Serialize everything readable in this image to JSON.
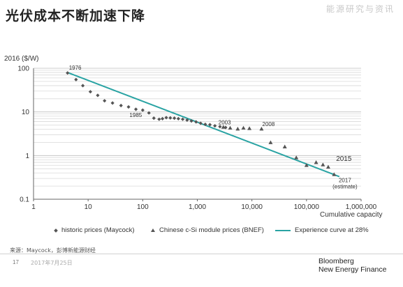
{
  "slide": {
    "title": "光伏成本不断加速下降",
    "watermark": "能源研究与资讯",
    "source": "来源：Maycock，彭博新能源财经",
    "page_number": "17",
    "date": "2017年7月25日",
    "brand_line1": "Bloomberg",
    "brand_line2": "New Energy Finance"
  },
  "chart_data": {
    "type": "scatter",
    "xlabel": "Cumulative capacity",
    "ylabel": "2016 ($/W)",
    "x_scale": "log",
    "y_scale": "log",
    "xlim": [
      1,
      1000000
    ],
    "ylim": [
      0.1,
      100
    ],
    "x_ticks": [
      1,
      10,
      100,
      1000,
      10000,
      100000,
      1000000
    ],
    "x_tick_labels": [
      "1",
      "10",
      "100",
      "1,000",
      "10,000",
      "100,000",
      "1,000,000"
    ],
    "y_ticks": [
      0.1,
      1,
      10,
      100
    ],
    "y_tick_labels": [
      "0.1",
      "1",
      "10",
      "100"
    ],
    "grid": "horizontal",
    "series": [
      {
        "name": "historic prices (Maycock)",
        "marker": "diamond",
        "color": "#555555",
        "points": [
          [
            4.2,
            78
          ],
          [
            6,
            55
          ],
          [
            8,
            40
          ],
          [
            11,
            29
          ],
          [
            15,
            24
          ],
          [
            20,
            18
          ],
          [
            28,
            16
          ],
          [
            40,
            14
          ],
          [
            55,
            13
          ],
          [
            75,
            11.5
          ],
          [
            100,
            11
          ],
          [
            130,
            9.5
          ],
          [
            160,
            7.2
          ],
          [
            200,
            6.8
          ],
          [
            230,
            7.0
          ],
          [
            270,
            7.4
          ],
          [
            320,
            7.3
          ],
          [
            380,
            7.2
          ],
          [
            450,
            7.0
          ],
          [
            540,
            6.8
          ],
          [
            650,
            6.5
          ],
          [
            780,
            6.2
          ],
          [
            950,
            5.9
          ],
          [
            1150,
            5.5
          ],
          [
            1400,
            5.2
          ],
          [
            1700,
            5.1
          ],
          [
            2100,
            4.8
          ],
          [
            2600,
            4.6
          ],
          [
            3300,
            4.4
          ]
        ]
      },
      {
        "name": "Chinese c-Si module prices (BNEF)",
        "marker": "triangle",
        "color": "#555555",
        "points": [
          [
            3000,
            4.5
          ],
          [
            4000,
            4.3
          ],
          [
            5500,
            4.1
          ],
          [
            7000,
            4.3
          ],
          [
            9000,
            4.2
          ],
          [
            15000,
            4.1
          ],
          [
            22000,
            2.0
          ],
          [
            40000,
            1.6
          ],
          [
            65000,
            0.9
          ],
          [
            100000,
            0.6
          ],
          [
            150000,
            0.7
          ],
          [
            200000,
            0.62
          ],
          [
            250000,
            0.55
          ],
          [
            320000,
            0.37
          ]
        ]
      },
      {
        "name": "Experience curve at 28%",
        "marker": "line",
        "color": "#29a3a3",
        "points": [
          [
            4.2,
            80
          ],
          [
            400000,
            0.33
          ]
        ]
      }
    ],
    "annotations": [
      {
        "text": "1976",
        "x": 4.2,
        "y": 80
      },
      {
        "text": "1985",
        "x": 100,
        "y": 11
      },
      {
        "text": "2003",
        "x": 2100,
        "y": 4.8
      },
      {
        "text": "2008",
        "x": 15000,
        "y": 4.1
      },
      {
        "text": "2015",
        "x": 320000,
        "y": 0.7
      },
      {
        "text": "2017",
        "x": 400000,
        "y": 0.33
      },
      {
        "text": "(estimate)",
        "x": 400000,
        "y": 0.33
      }
    ]
  }
}
